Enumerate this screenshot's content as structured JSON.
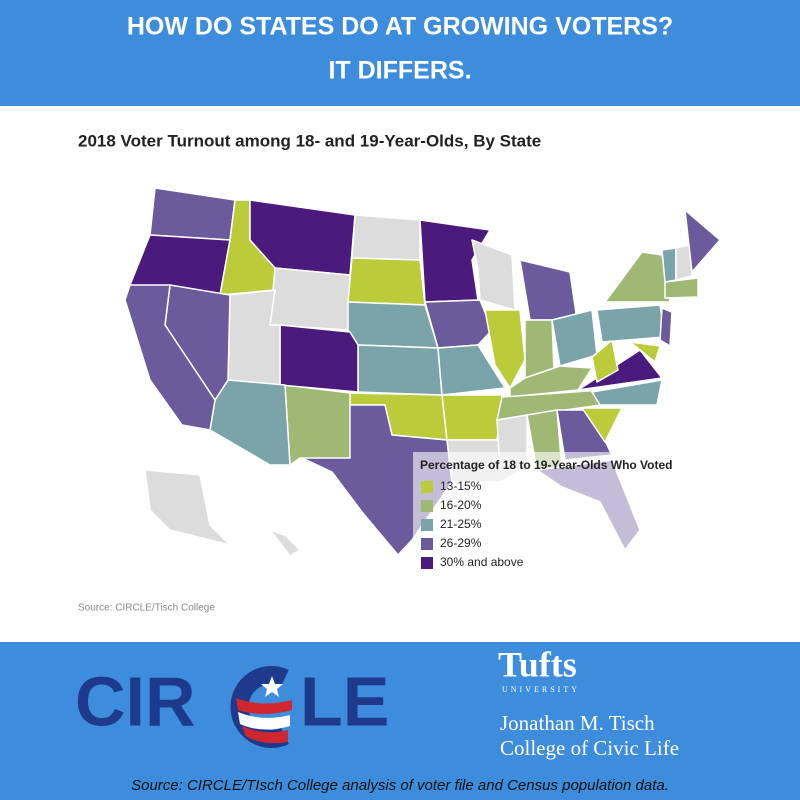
{
  "header": {
    "title_lines": [
      "HOW DO STATES DO AT GROWING VOTERS?",
      "IT DIFFERS."
    ]
  },
  "map": {
    "title": "2018 Voter Turnout among 18- and 19-Year-Olds, By State",
    "legend": {
      "title": "Percentage of 18 to 19-Year-Olds Who Voted",
      "items": [
        {
          "label": "13-15%",
          "color": "#bccb3a"
        },
        {
          "label": "16-20%",
          "color": "#9fb874"
        },
        {
          "label": "21-25%",
          "color": "#7aa3aa"
        },
        {
          "label": "26-29%",
          "color": "#6b5a9c"
        },
        {
          "label": "30% and above",
          "color": "#4a1a7c"
        }
      ]
    },
    "source": "Source: CIRCLE/Tisch College"
  },
  "footer": {
    "logo_parts": [
      "CIR",
      "LE"
    ],
    "tufts": {
      "name": "Tufts",
      "sub": "UNIVERSITY",
      "college_lines": [
        "Jonathan M. Tisch",
        "College of Civic Life"
      ]
    },
    "source": "Source: CIRCLE/TIsch College analysis of voter file and Census population data."
  }
}
